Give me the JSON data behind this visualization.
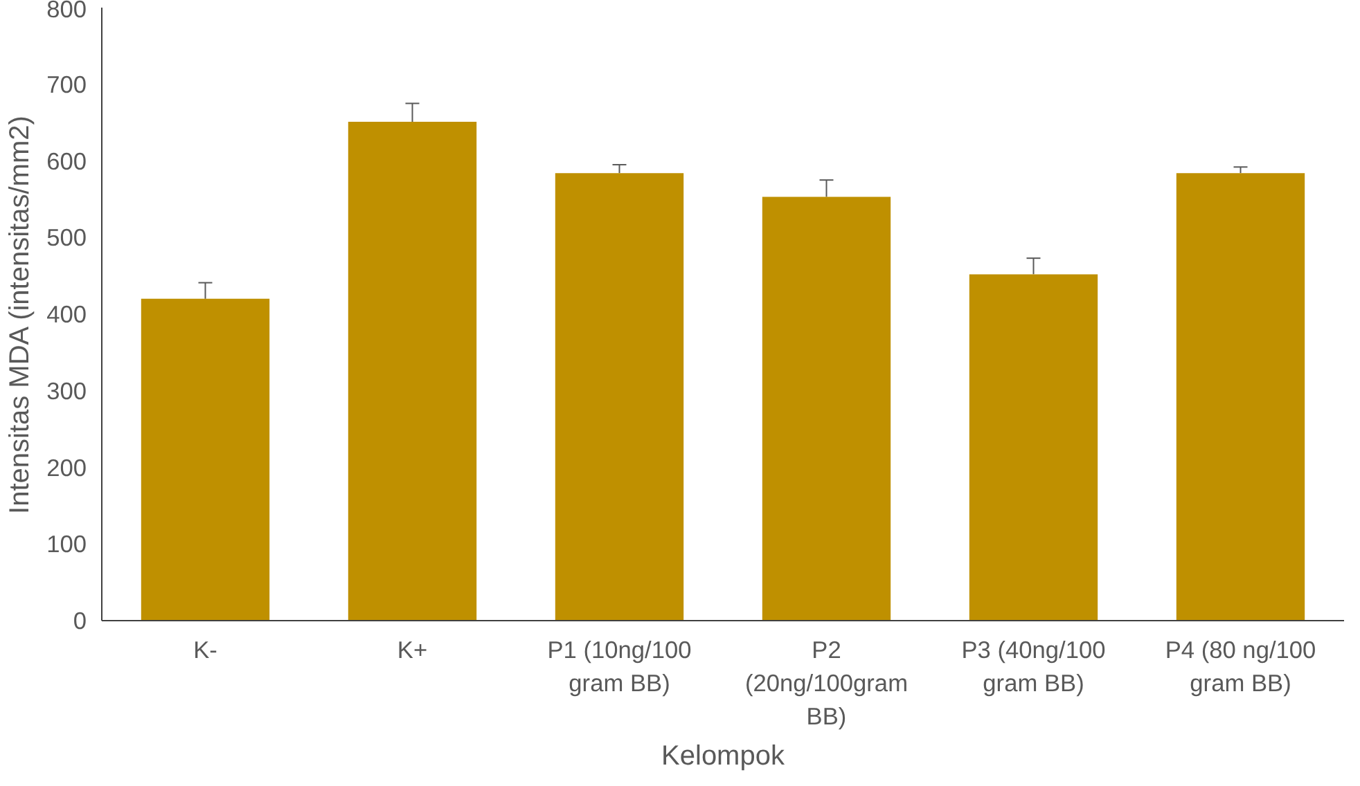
{
  "chart_data": {
    "type": "bar",
    "xlabel": "Kelompok",
    "ylabel": "Intensitas MDA (intensitas/mm2)",
    "categories": [
      "K-",
      "K+",
      "P1 (10ng/100 gram BB)",
      "P2 (20ng/100gram BB)",
      "P3 (40ng/100 gram BB)",
      "P4 (80 ng/100 gram BB)"
    ],
    "values": [
      420,
      651,
      584,
      553,
      452,
      584
    ],
    "errors": [
      [
        420,
        441
      ],
      [
        651,
        675
      ],
      [
        584,
        595
      ],
      [
        553,
        575
      ],
      [
        452,
        473
      ],
      [
        584,
        592
      ]
    ],
    "color": "#bf9000",
    "ylim": [
      0,
      800
    ],
    "yticks": [
      0,
      100,
      200,
      300,
      400,
      500,
      600,
      700,
      800
    ],
    "grid": false
  }
}
